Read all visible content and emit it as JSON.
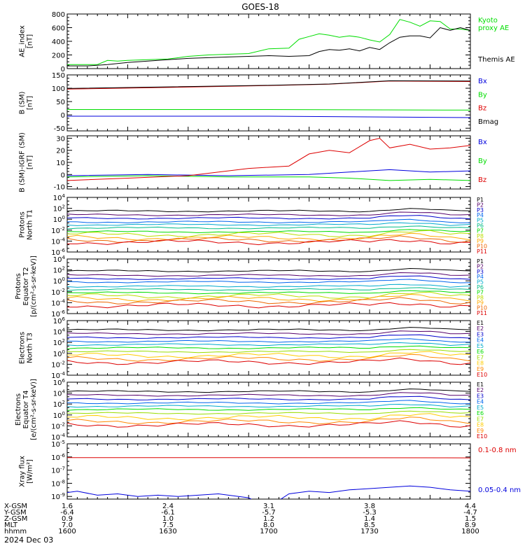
{
  "title": "GOES-18",
  "date_label": "2024 Dec 03",
  "colors": {
    "black": "#000000",
    "blue": "#0000dd",
    "green": "#00dd00",
    "red": "#dd0000",
    "P": [
      "#000000",
      "#55006a",
      "#0000cc",
      "#0066ee",
      "#00aacc",
      "#00bb88",
      "#00dd00",
      "#bbdd00",
      "#ffaa00",
      "#ee6600",
      "#dd0000"
    ],
    "E": [
      "#000000",
      "#55006a",
      "#0000cc",
      "#0066ee",
      "#00aacc",
      "#00dd00",
      "#99dd00",
      "#ffcc00",
      "#ff8800",
      "#dd0000"
    ]
  },
  "time_ticks": [
    "1600",
    "1630",
    "1700",
    "1730",
    "1800"
  ],
  "ephemeris": [
    {
      "label": "X-GSM",
      "values": [
        "1.6",
        "2.4",
        "3.1",
        "3.8",
        "4.4"
      ]
    },
    {
      "label": "Y-GSM",
      "values": [
        "-6.4",
        "-6.1",
        "-5.7",
        "-5.3",
        "-4.7"
      ]
    },
    {
      "label": "Z-GSM",
      "values": [
        "0.9",
        "1.0",
        "1.2",
        "1.4",
        "1.5"
      ]
    },
    {
      "label": "MLT",
      "values": [
        "7.0",
        "7.5",
        "8.0",
        "8.5",
        "8.9"
      ]
    },
    {
      "label": "hhmm",
      "values": [
        "1600",
        "1630",
        "1700",
        "1730",
        "1800"
      ]
    }
  ],
  "chart_data": [
    {
      "id": "ae",
      "type": "line",
      "ylabel": [
        "AE_index",
        "[nT]"
      ],
      "scale": "linear",
      "ylim": [
        0,
        800
      ],
      "ticks": [
        0,
        200,
        400,
        600,
        800
      ],
      "x_range": [
        1600,
        1800
      ],
      "series": [
        {
          "name": "Kyoto proxy AE",
          "label_lines": [
            "Kyoto",
            "proxy AE"
          ],
          "color": "#00dd00",
          "x": [
            1600,
            1610,
            1615,
            1620,
            1625,
            1630,
            1640,
            1650,
            1660,
            1670,
            1680,
            1690,
            1700,
            1710,
            1715,
            1720,
            1725,
            1730,
            1735,
            1740,
            1745,
            1750,
            1755,
            1760,
            1765,
            1770,
            1775,
            1780,
            1785,
            1790,
            1795,
            1800
          ],
          "y": [
            60,
            60,
            60,
            120,
            110,
            120,
            130,
            140,
            180,
            200,
            210,
            220,
            290,
            300,
            430,
            470,
            510,
            490,
            460,
            480,
            460,
            420,
            390,
            500,
            720,
            680,
            620,
            700,
            690,
            580,
            580,
            560
          ]
        },
        {
          "name": "Themis AE",
          "label_lines": [
            "Themis AE"
          ],
          "color": "#000000",
          "x": [
            1600,
            1610,
            1620,
            1630,
            1640,
            1650,
            1660,
            1670,
            1680,
            1690,
            1700,
            1710,
            1720,
            1725,
            1730,
            1735,
            1740,
            1745,
            1750,
            1755,
            1760,
            1765,
            1770,
            1775,
            1780,
            1785,
            1790,
            1795,
            1800
          ],
          "y": [
            40,
            40,
            60,
            90,
            110,
            130,
            150,
            160,
            170,
            180,
            190,
            180,
            190,
            250,
            280,
            270,
            290,
            260,
            310,
            280,
            380,
            460,
            480,
            480,
            450,
            600,
            560,
            600,
            560
          ]
        }
      ]
    },
    {
      "id": "bsm",
      "type": "line",
      "ylabel": [
        "B (SM)",
        "[nT]"
      ],
      "scale": "linear",
      "ylim": [
        -60,
        150
      ],
      "ticks": [
        -50,
        0,
        50,
        100,
        150
      ],
      "x_range": [
        1600,
        1800
      ],
      "series": [
        {
          "name": "Bx",
          "color": "#0000dd",
          "x": [
            1600,
            1700,
            1800
          ],
          "y": [
            -5,
            -5,
            -10
          ]
        },
        {
          "name": "By",
          "color": "#00dd00",
          "x": [
            1600,
            1700,
            1800
          ],
          "y": [
            20,
            20,
            18
          ]
        },
        {
          "name": "Bz",
          "color": "#dd0000",
          "x": [
            1600,
            1650,
            1700,
            1730,
            1760,
            1800
          ],
          "y": [
            97,
            103,
            110,
            115,
            127,
            125
          ]
        },
        {
          "name": "Bmag",
          "color": "#000000",
          "x": [
            1600,
            1650,
            1700,
            1730,
            1760,
            1800
          ],
          "y": [
            99,
            105,
            111,
            116,
            128,
            127
          ]
        }
      ]
    },
    {
      "id": "bigrf",
      "type": "line",
      "ylabel": [
        "B (SM)-IGRF (SM)",
        "[nT]"
      ],
      "scale": "linear",
      "ylim": [
        -12,
        32
      ],
      "ticks": [
        -10,
        0,
        10,
        20,
        30
      ],
      "x_range": [
        1600,
        1800
      ],
      "series": [
        {
          "name": "Bx",
          "color": "#0000dd",
          "x": [
            1600,
            1640,
            1680,
            1720,
            1740,
            1760,
            1780,
            1800
          ],
          "y": [
            -1,
            0,
            -1,
            0,
            2,
            4,
            2,
            3
          ]
        },
        {
          "name": "By",
          "color": "#00dd00",
          "x": [
            1600,
            1640,
            1680,
            1720,
            1740,
            1760,
            1780,
            1800
          ],
          "y": [
            -2,
            -1,
            -2,
            -2,
            -3,
            -5,
            -4,
            -5
          ]
        },
        {
          "name": "Bz",
          "color": "#dd0000",
          "x": [
            1600,
            1630,
            1660,
            1690,
            1710,
            1720,
            1730,
            1740,
            1750,
            1755,
            1760,
            1770,
            1780,
            1790,
            1800
          ],
          "y": [
            -5,
            -3,
            -1,
            5,
            7,
            17,
            20,
            18,
            28,
            30,
            22,
            25,
            21,
            22,
            24
          ]
        }
      ]
    },
    {
      "id": "protons-north",
      "type": "line",
      "ylabel": [
        "Protons",
        "North T1"
      ],
      "scale": "log",
      "ylim": [
        -6,
        4
      ],
      "ticks": [
        -6,
        -4,
        -2,
        0,
        2,
        4
      ],
      "x_range": [
        1600,
        1800
      ],
      "label_prefix": "P",
      "count": 11,
      "levels": [
        1.5,
        0.8,
        0.2,
        -0.5,
        -1.0,
        -1.6,
        -2.3,
        -2.8,
        -3.4,
        -3.8,
        -4.2
      ]
    },
    {
      "id": "protons-equator",
      "type": "line",
      "ylabel": [
        "Protons",
        "Equator T2",
        "[p/(cm²-s-sr-keV)]"
      ],
      "scale": "log",
      "ylim": [
        -6,
        4
      ],
      "ticks": [
        -6,
        -4,
        -2,
        0,
        2,
        4
      ],
      "x_range": [
        1600,
        1800
      ],
      "label_prefix": "P",
      "count": 11,
      "levels": [
        1.8,
        1.0,
        0.4,
        -0.2,
        -1.0,
        -1.6,
        -2.2,
        -2.8,
        -3.3,
        -3.8,
        -4.5
      ]
    },
    {
      "id": "electrons-north",
      "type": "line",
      "ylabel": [
        "Electrons",
        "North T3"
      ],
      "scale": "log",
      "ylim": [
        -4,
        6
      ],
      "ticks": [
        -4,
        -2,
        0,
        2,
        4,
        6
      ],
      "x_range": [
        1600,
        1800
      ],
      "label_prefix": "E",
      "count": 10,
      "levels": [
        4.3,
        3.6,
        2.9,
        2.2,
        1.6,
        1.0,
        0.3,
        -0.4,
        -1.0,
        -1.6
      ]
    },
    {
      "id": "electrons-equator",
      "type": "line",
      "ylabel": [
        "Electrons",
        "Equator T4",
        "[e/(cm²-s-sr-keV)]"
      ],
      "scale": "log",
      "ylim": [
        -4,
        6
      ],
      "ticks": [
        -4,
        -2,
        0,
        2,
        4,
        6
      ],
      "x_range": [
        1600,
        1800
      ],
      "label_prefix": "E",
      "count": 10,
      "levels": [
        4.3,
        3.6,
        2.9,
        2.2,
        1.6,
        1.0,
        0.3,
        -0.5,
        -1.2,
        -1.8
      ]
    },
    {
      "id": "xray",
      "type": "line",
      "ylabel": [
        "Xray flux",
        "[W/m²]"
      ],
      "scale": "log",
      "ylim": [
        -9.2,
        -5
      ],
      "ticks": [
        -9,
        -8,
        -7,
        -6,
        -5
      ],
      "x_range": [
        1600,
        1800
      ],
      "series": [
        {
          "name": "0.1-0.8 nm",
          "color": "#dd0000",
          "x": [
            1600,
            1700,
            1800
          ],
          "y": [
            -6.05,
            -6.05,
            -6.07
          ]
        },
        {
          "name": "0.05-0.4 nm",
          "color": "#0000dd",
          "x": [
            1600,
            1605,
            1615,
            1625,
            1635,
            1645,
            1655,
            1665,
            1675,
            1685,
            1690,
            1695,
            1700,
            1705,
            1710,
            1715,
            1720,
            1730,
            1740,
            1750,
            1760,
            1770,
            1780,
            1790,
            1800
          ],
          "y": [
            -8.7,
            -8.6,
            -8.9,
            -8.8,
            -9.0,
            -8.9,
            -9.0,
            -8.9,
            -8.8,
            -9.0,
            -9.1,
            -9.5,
            -9.5,
            -9.3,
            -8.8,
            -8.7,
            -8.6,
            -8.7,
            -8.5,
            -8.4,
            -8.3,
            -8.2,
            -8.3,
            -8.5,
            -8.6
          ]
        }
      ]
    }
  ]
}
